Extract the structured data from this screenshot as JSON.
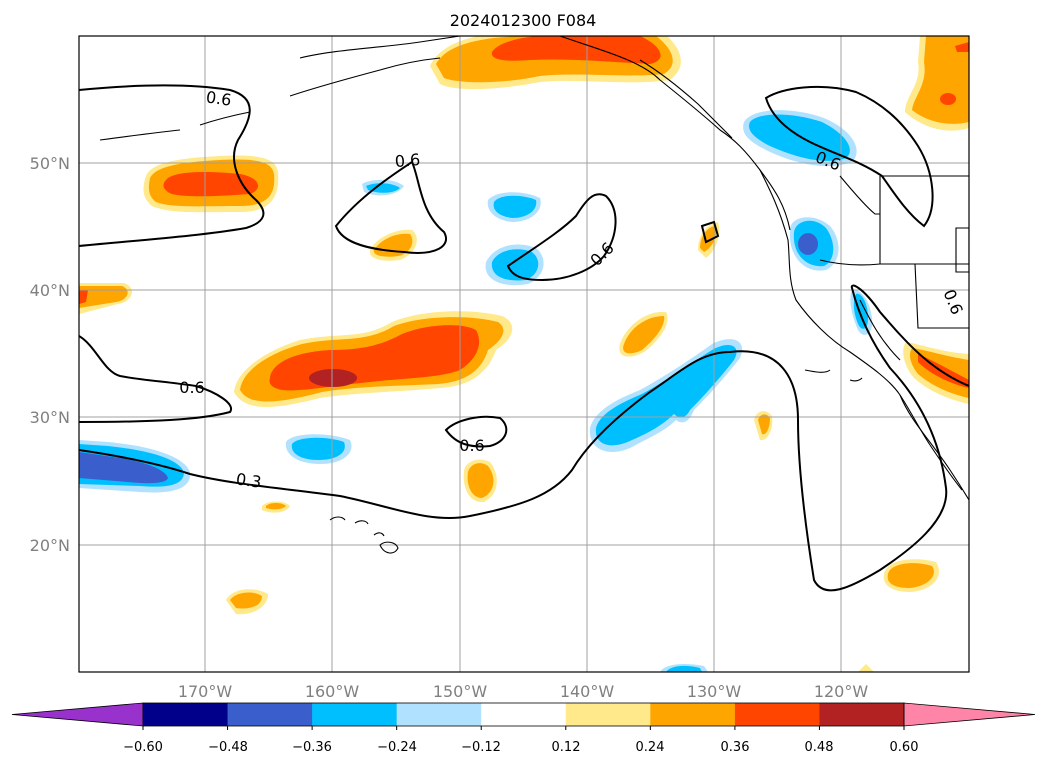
{
  "title": "2024012300 F084",
  "lat_labels": [
    "50°N",
    "40°N",
    "30°N",
    "20°N"
  ],
  "lon_labels": [
    "170°W",
    "160°W",
    "150°W",
    "140°W",
    "130°W",
    "120°W"
  ],
  "colorbar": {
    "ticks": [
      "−0.60",
      "−0.48",
      "−0.36",
      "−0.24",
      "−0.12",
      "0.12",
      "0.24",
      "0.36",
      "0.48",
      "0.60"
    ],
    "colors": [
      "#9932cc",
      "#00008b",
      "#3a5fcd",
      "#00bfff",
      "#b0e2ff",
      "#ffffff",
      "#ffe98a",
      "#ffa500",
      "#ff4500",
      "#b22222",
      "#ff85a8"
    ]
  },
  "contour_labels": [
    "0.6",
    "0.6",
    "0.6",
    "0.6",
    "0.6",
    "0.6",
    "0.6",
    "0.3"
  ]
}
